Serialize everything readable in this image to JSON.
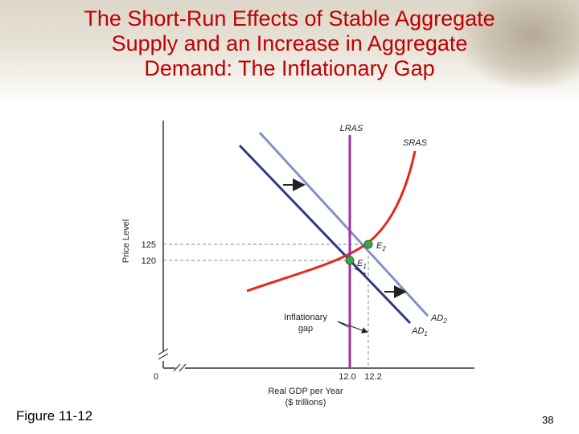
{
  "slide": {
    "title": "The Short-Run Effects of Stable Aggregate\nSupply and an Increase in Aggregate\nDemand: The Inflationary Gap",
    "figure_label": "Figure 11-12",
    "slide_number": "38"
  },
  "diagram": {
    "y_axis_label": "Price Level",
    "x_axis_label_line1": "Real GDP per Year",
    "x_axis_label_line2": "($ trillions)",
    "origin_label": "0",
    "y_ticks": [
      "125",
      "120"
    ],
    "x_ticks": [
      "12.0",
      "12.2"
    ],
    "curves": {
      "lras": "LRAS",
      "sras": "SRAS",
      "ad1_base": "AD",
      "ad1_sub": "1",
      "ad2_base": "AD",
      "ad2_sub": "2"
    },
    "points": {
      "e1_base": "E",
      "e1_sub": "1",
      "e2_base": "E",
      "e2_sub": "2"
    },
    "annotation_line1": "Inflationary",
    "annotation_line2": "gap",
    "colors": {
      "lras": "#9b30a8",
      "sras": "#e8261f",
      "ad1": "#2d3a8c",
      "ad2": "#7f93c4",
      "equilibrium": "#3aa84a",
      "title": "#c00000"
    }
  }
}
